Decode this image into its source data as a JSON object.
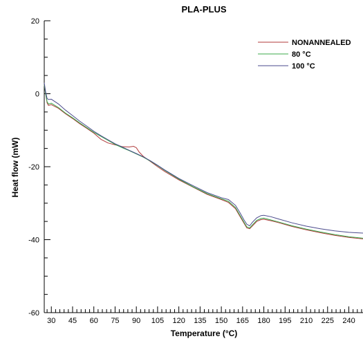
{
  "chart_data": {
    "type": "line",
    "title": "PLA-PLUS",
    "xlabel": "Temperature (°C)",
    "ylabel": "Heat flow (mW)",
    "xlim": [
      25,
      250
    ],
    "ylim": [
      -60,
      20
    ],
    "x_ticks": [
      30,
      45,
      60,
      75,
      90,
      105,
      120,
      135,
      150,
      165,
      180,
      195,
      210,
      225,
      240
    ],
    "y_ticks": [
      20,
      0,
      -20,
      -40,
      -60
    ],
    "grid": false,
    "legend_position": "top-right",
    "series": [
      {
        "name": "NONANNEALED",
        "color": "#b03a3a",
        "x": [
          25,
          26,
          27,
          28,
          30,
          35,
          40,
          45,
          50,
          55,
          60,
          65,
          70,
          75,
          80,
          85,
          88,
          90,
          92,
          95,
          100,
          105,
          110,
          120,
          130,
          140,
          150,
          155,
          160,
          163,
          166,
          168,
          170,
          172,
          175,
          178,
          180,
          185,
          190,
          200,
          210,
          220,
          230,
          240,
          250
        ],
        "y": [
          2.5,
          0,
          -2.5,
          -3.2,
          -3.0,
          -4.0,
          -5.5,
          -6.8,
          -8.2,
          -9.5,
          -10.8,
          -12.5,
          -13.5,
          -14.0,
          -14.5,
          -14.6,
          -14.4,
          -14.8,
          -16.0,
          -17.2,
          -18.6,
          -20.0,
          -21.3,
          -23.6,
          -25.6,
          -27.6,
          -29.0,
          -29.8,
          -31.5,
          -33.5,
          -35.5,
          -36.8,
          -37.0,
          -36.2,
          -35.0,
          -34.5,
          -34.4,
          -34.8,
          -35.3,
          -36.4,
          -37.3,
          -38.1,
          -38.8,
          -39.4,
          -39.8
        ]
      },
      {
        "name": "80 °C",
        "color": "#3aa84a",
        "x": [
          25,
          26,
          27,
          28,
          30,
          35,
          40,
          45,
          50,
          55,
          60,
          65,
          70,
          75,
          80,
          85,
          90,
          95,
          100,
          105,
          110,
          120,
          130,
          140,
          150,
          155,
          160,
          163,
          166,
          168,
          170,
          172,
          175,
          178,
          180,
          185,
          190,
          200,
          210,
          220,
          230,
          240,
          250
        ],
        "y": [
          2.5,
          0,
          -2.2,
          -2.8,
          -2.6,
          -3.8,
          -5.3,
          -6.6,
          -8.0,
          -9.3,
          -10.6,
          -11.7,
          -12.8,
          -13.9,
          -14.8,
          -15.6,
          -16.5,
          -17.4,
          -18.5,
          -19.7,
          -21.0,
          -23.4,
          -25.5,
          -27.4,
          -28.8,
          -29.5,
          -31.2,
          -33.2,
          -35.2,
          -36.5,
          -36.8,
          -35.9,
          -34.7,
          -34.2,
          -34.1,
          -34.6,
          -35.1,
          -36.2,
          -37.1,
          -37.9,
          -38.6,
          -39.2,
          -39.6
        ]
      },
      {
        "name": "100 °C",
        "color": "#4a4a8c",
        "x": [
          25,
          26,
          27,
          28,
          30,
          35,
          40,
          45,
          50,
          55,
          60,
          65,
          70,
          75,
          80,
          85,
          90,
          95,
          100,
          105,
          110,
          120,
          130,
          140,
          150,
          155,
          160,
          163,
          166,
          168,
          170,
          172,
          175,
          178,
          180,
          185,
          190,
          200,
          210,
          220,
          230,
          240,
          250
        ],
        "y": [
          3.0,
          0.5,
          -1.3,
          -1.6,
          -1.5,
          -2.8,
          -4.5,
          -6.0,
          -7.5,
          -8.9,
          -10.3,
          -11.5,
          -12.6,
          -13.7,
          -14.6,
          -15.5,
          -16.4,
          -17.3,
          -18.4,
          -19.6,
          -20.9,
          -23.2,
          -25.2,
          -27.1,
          -28.5,
          -29.0,
          -30.6,
          -32.5,
          -34.6,
          -35.8,
          -36.2,
          -35.2,
          -34.0,
          -33.4,
          -33.3,
          -33.7,
          -34.3,
          -35.4,
          -36.3,
          -37.0,
          -37.6,
          -38.0,
          -38.2
        ]
      }
    ]
  }
}
